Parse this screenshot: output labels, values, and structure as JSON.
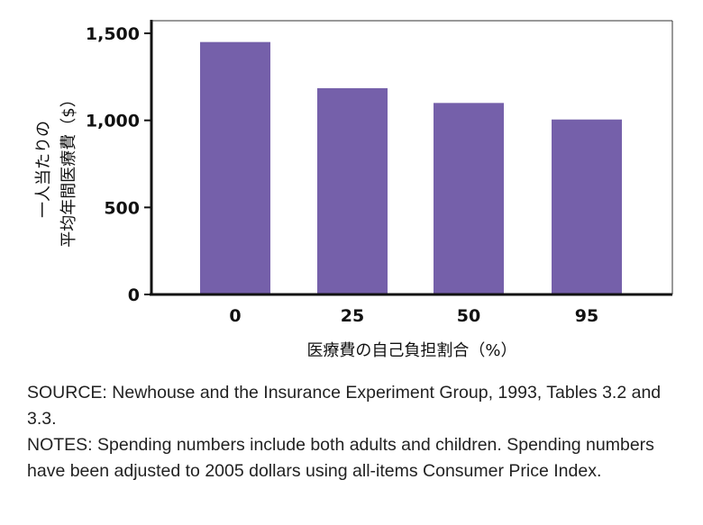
{
  "chart_data": {
    "type": "bar",
    "categories": [
      "0",
      "25",
      "50",
      "95"
    ],
    "values": [
      1450,
      1185,
      1100,
      1005
    ],
    "xlabel": "医療費の自己負担割合（%）",
    "ylabel_lines": [
      "一人当たりの",
      "平均年間医療費（$）"
    ],
    "ylim": [
      0,
      1500
    ],
    "yticks": [
      0,
      500,
      1000,
      1500
    ],
    "ytick_labels": [
      "0",
      "500",
      "1,000",
      "1,500"
    ],
    "grid": false,
    "bar_color": "#7560AA"
  },
  "notes": {
    "source": "SOURCE: Newhouse and the Insurance Experiment Group, 1993, Tables 3.2 and 3.3.",
    "notes": "NOTES: Spending numbers include both adults and children. Spending numbers have been adjusted to 2005 dollars using all-items Consumer Price Index."
  }
}
